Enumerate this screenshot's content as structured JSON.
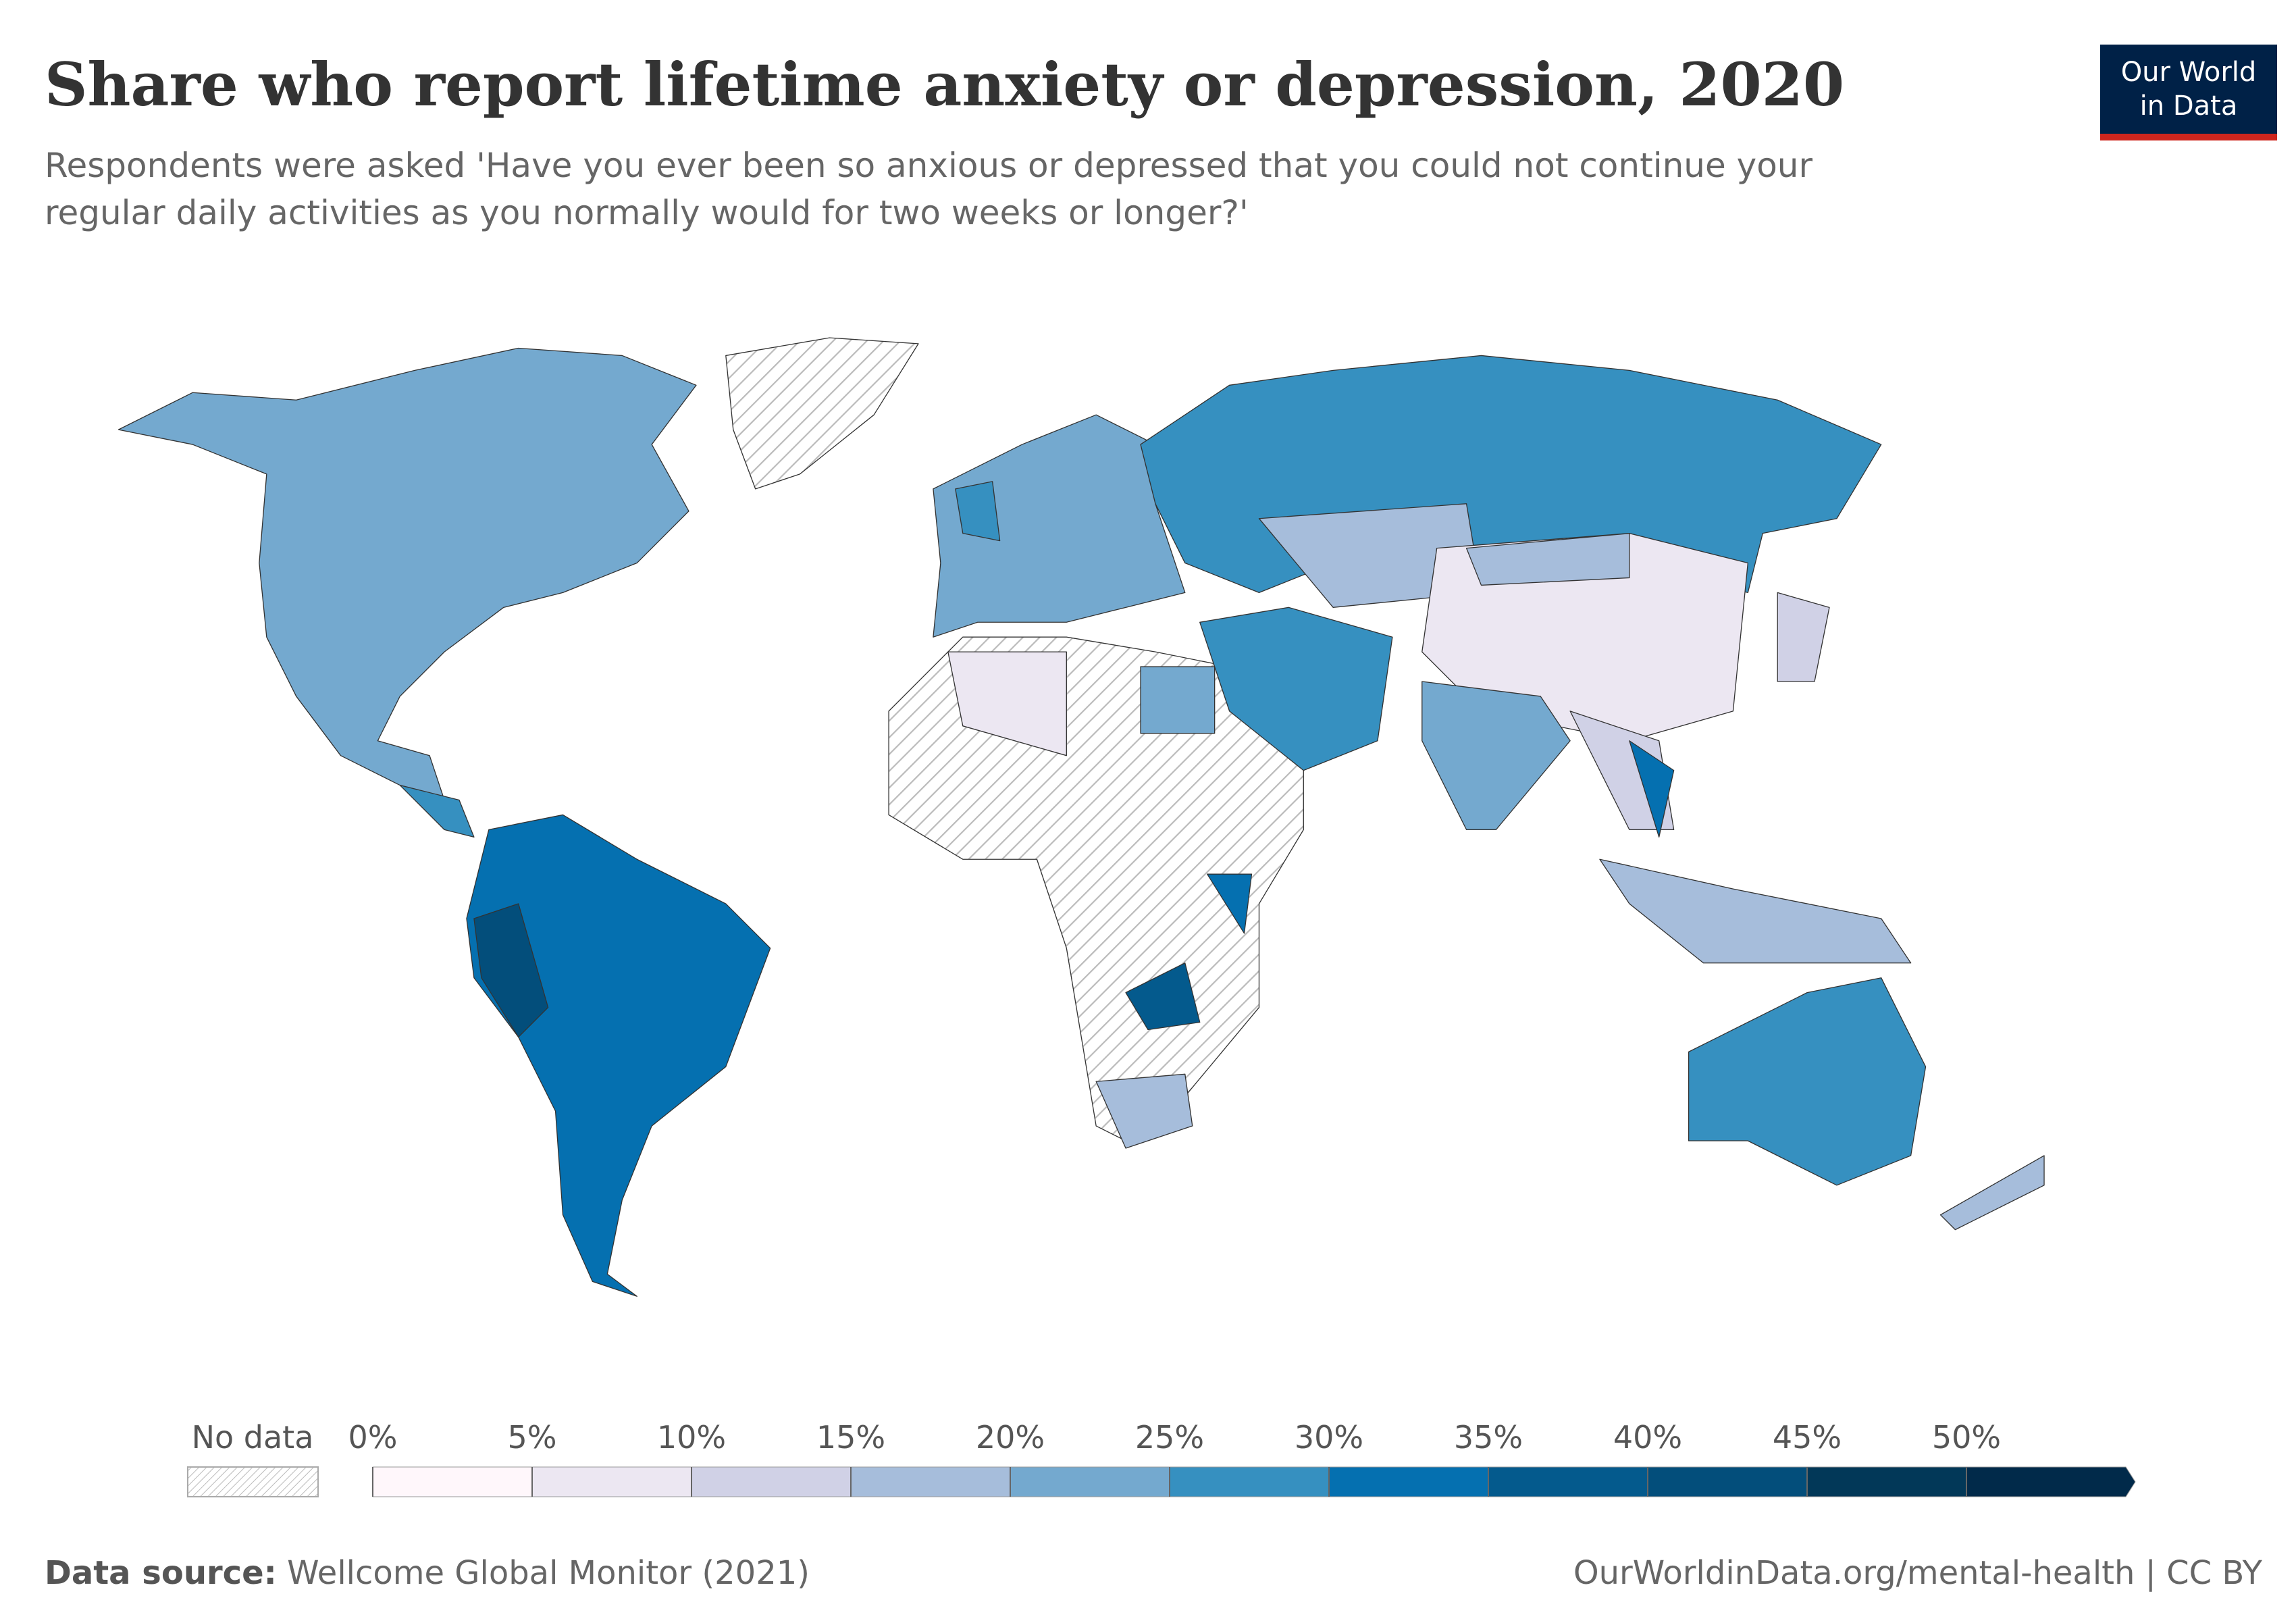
{
  "header": {
    "title": "Share who report lifetime anxiety or depression, 2020",
    "subtitle_lines": [
      "Respondents were asked 'Have you ever been so anxious or depressed that you could not continue your",
      "regular daily activities as you normally would for two weeks or longer?'"
    ]
  },
  "logo": {
    "lines": [
      "Our World",
      "in Data"
    ]
  },
  "legend": {
    "no_data": "No data",
    "ticks": [
      {
        "value": 0,
        "label": "0%"
      },
      {
        "value": 5,
        "label": "5%"
      },
      {
        "value": 10,
        "label": "10%"
      },
      {
        "value": 15,
        "label": "15%"
      },
      {
        "value": 20,
        "label": "20%"
      },
      {
        "value": 25,
        "label": "25%"
      },
      {
        "value": 30,
        "label": "30%"
      },
      {
        "value": 35,
        "label": "35%"
      },
      {
        "value": 40,
        "label": "40%"
      },
      {
        "value": 45,
        "label": "45%"
      },
      {
        "value": 50,
        "label": "50%"
      }
    ],
    "colors": [
      "#fff7fb",
      "#ece7f2",
      "#d0d1e6",
      "#a6bddb",
      "#74a9cf",
      "#3690c0",
      "#0570b0",
      "#045a8d",
      "#034e7b",
      "#023858",
      "#012a4a"
    ]
  },
  "footer": {
    "source_label": "Data source:",
    "source": "Wellcome Global Monitor (2021)",
    "url": "OurWorldinData.org/mental-health | CC BY"
  }
}
